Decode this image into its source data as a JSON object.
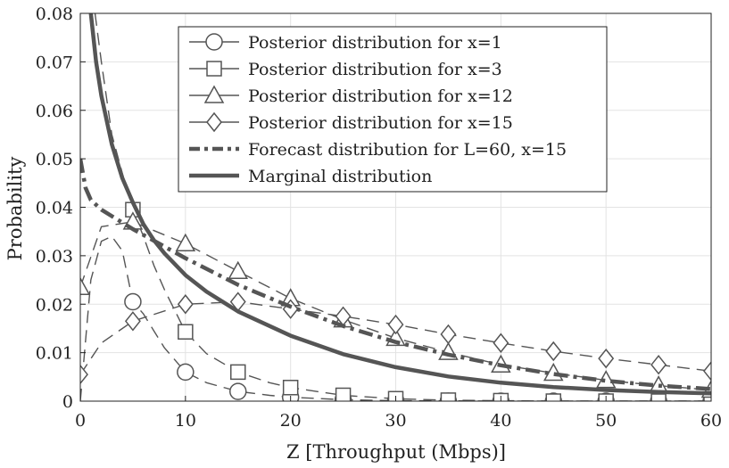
{
  "chart_data": {
    "type": "line",
    "title": "",
    "xlabel": "Z [Throughput (Mbps)]",
    "ylabel": "Probability",
    "xlim": [
      0,
      60
    ],
    "ylim": [
      0,
      0.08
    ],
    "xticks": [
      0,
      10,
      20,
      30,
      40,
      50,
      60
    ],
    "yticks": [
      0,
      0.01,
      0.02,
      0.03,
      0.04,
      0.05,
      0.06,
      0.07,
      0.08
    ],
    "xtick_labels": [
      "0",
      "10",
      "20",
      "30",
      "40",
      "50",
      "60"
    ],
    "ytick_labels": [
      "0",
      "0.01",
      "0.02",
      "0.03",
      "0.04",
      "0.05",
      "0.06",
      "0.07",
      "0.08"
    ],
    "grid": true,
    "legend_position": "top-center",
    "colors": {
      "series": "#555555",
      "grid": "#e3e3e3",
      "axis": "#222222"
    },
    "series": [
      {
        "name": "Posterior distribution for x=1",
        "style": "dashed",
        "marker": "circle",
        "x": [
          0,
          1,
          2,
          3,
          4,
          5,
          6,
          7,
          8,
          10,
          12,
          15,
          18,
          20,
          25,
          30,
          35,
          40,
          45,
          50,
          55,
          60
        ],
        "y": [
          0,
          0.025,
          0.033,
          0.034,
          0.031,
          0.0205,
          0.018,
          0.0145,
          0.011,
          0.006,
          0.0038,
          0.002,
          0.0012,
          0.0008,
          0.0003,
          0.0001,
          5e-05,
          0,
          0,
          0,
          0,
          0
        ],
        "markers_x": [
          5,
          10,
          15,
          20,
          25,
          30,
          35,
          40,
          45,
          50,
          55,
          60
        ],
        "markers_y": [
          0.0205,
          0.006,
          0.002,
          0.0008,
          0.0003,
          0.0001,
          0,
          0,
          0,
          0,
          0,
          0
        ]
      },
      {
        "name": "Posterior distribution for x=3",
        "style": "dashed",
        "marker": "square",
        "x": [
          1.4,
          2,
          3,
          4,
          5,
          6,
          7,
          8,
          10,
          12,
          15,
          18,
          20,
          25,
          30,
          35,
          40,
          45,
          50,
          55,
          60
        ],
        "y": [
          0.08,
          0.07,
          0.055,
          0.047,
          0.0395,
          0.034,
          0.028,
          0.023,
          0.0143,
          0.0098,
          0.006,
          0.0038,
          0.0028,
          0.0012,
          0.0005,
          0.0002,
          0.0001,
          0,
          0,
          0,
          0
        ],
        "markers_x": [
          5,
          10,
          15,
          20,
          25,
          30,
          35,
          40,
          45,
          50,
          55,
          60
        ],
        "markers_y": [
          0.0395,
          0.0143,
          0.006,
          0.0028,
          0.0012,
          0.0005,
          0.0002,
          0.0001,
          0,
          0,
          0,
          0
        ]
      },
      {
        "name": "Posterior distribution for x=12",
        "style": "dashed",
        "marker": "triangle",
        "x": [
          0,
          2,
          5,
          10,
          15,
          20,
          25,
          30,
          35,
          40,
          45,
          50,
          55,
          60
        ],
        "y": [
          0.0235,
          0.036,
          0.037,
          0.0325,
          0.0268,
          0.0212,
          0.0168,
          0.013,
          0.0101,
          0.0075,
          0.0058,
          0.0043,
          0.0032,
          0.0023
        ],
        "markers_x": [
          0,
          5,
          10,
          15,
          20,
          25,
          30,
          35,
          40,
          45,
          50,
          55,
          60
        ],
        "markers_y": [
          0.0235,
          0.037,
          0.0325,
          0.0268,
          0.0212,
          0.0168,
          0.013,
          0.0101,
          0.0075,
          0.0058,
          0.0043,
          0.0032,
          0.0023
        ]
      },
      {
        "name": "Posterior distribution for x=15",
        "style": "dashed",
        "marker": "diamond",
        "x": [
          0,
          2,
          5,
          10,
          15,
          20,
          25,
          30,
          35,
          40,
          45,
          50,
          55,
          60
        ],
        "y": [
          0.0055,
          0.012,
          0.0165,
          0.02,
          0.0205,
          0.019,
          0.0175,
          0.0158,
          0.0138,
          0.012,
          0.0103,
          0.0088,
          0.0075,
          0.0062
        ],
        "markers_x": [
          0,
          5,
          10,
          15,
          20,
          25,
          30,
          35,
          40,
          45,
          50,
          55,
          60
        ],
        "markers_y": [
          0.0055,
          0.0165,
          0.02,
          0.0205,
          0.019,
          0.0175,
          0.0158,
          0.0138,
          0.012,
          0.0103,
          0.0088,
          0.0075,
          0.0062
        ]
      },
      {
        "name": "Forecast distribution for L=60, x=15",
        "style": "dashdot",
        "marker": "none",
        "x": [
          0,
          0.5,
          1,
          2,
          5,
          10,
          15,
          20,
          25,
          30,
          35,
          40,
          45,
          50,
          55,
          60
        ],
        "y": [
          0.05,
          0.044,
          0.0415,
          0.0395,
          0.0355,
          0.0295,
          0.024,
          0.0195,
          0.0155,
          0.0122,
          0.0096,
          0.0074,
          0.0056,
          0.0042,
          0.0032,
          0.0025
        ]
      },
      {
        "name": "Marginal distribution",
        "style": "solid",
        "marker": "none",
        "x": [
          1.0,
          1.5,
          2,
          3,
          4,
          5,
          6,
          7,
          8,
          10,
          12,
          15,
          20,
          25,
          30,
          35,
          40,
          45,
          50,
          55,
          60
        ],
        "y": [
          0.08,
          0.07,
          0.063,
          0.053,
          0.046,
          0.041,
          0.0365,
          0.0332,
          0.0305,
          0.026,
          0.0226,
          0.0185,
          0.0135,
          0.0097,
          0.007,
          0.0051,
          0.0038,
          0.0029,
          0.0023,
          0.0019,
          0.0016
        ]
      }
    ]
  }
}
